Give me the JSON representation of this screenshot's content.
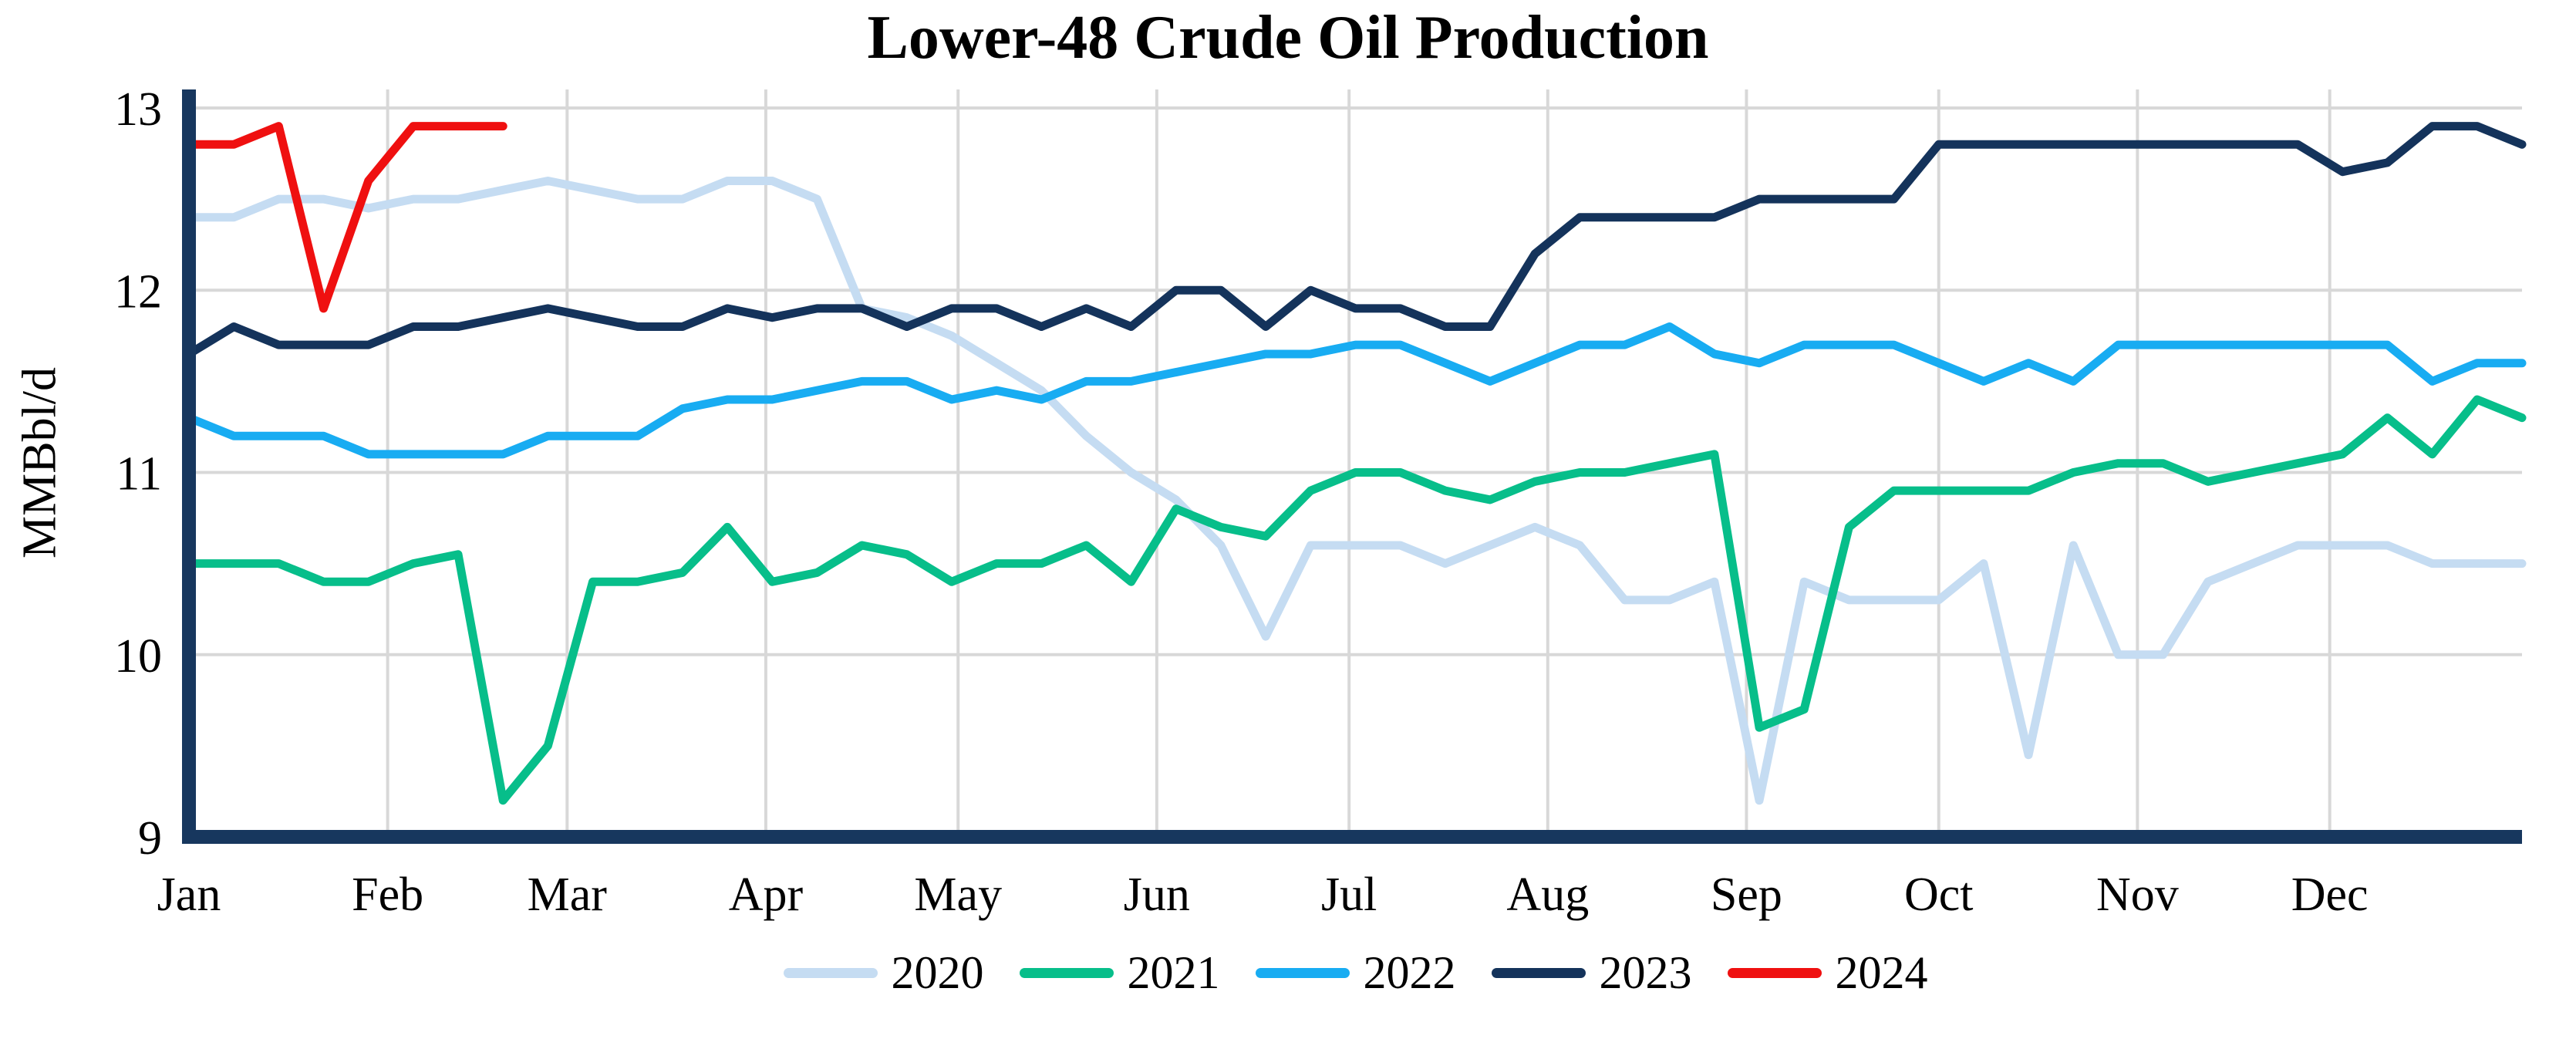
{
  "title": "Lower-48 Crude Oil Production",
  "y_axis": {
    "label": "MMBbl/d",
    "tick_labels": [
      "13",
      "12",
      "11",
      "10",
      "9"
    ],
    "min": 9,
    "max": 13
  },
  "x_axis": {
    "tick_labels": [
      "Jan",
      "Feb",
      "Mar",
      "Apr",
      "May",
      "Jun",
      "Jul",
      "Aug",
      "Sep",
      "Oct",
      "Nov",
      "Dec"
    ],
    "month_start_days": [
      0,
      31,
      59,
      90,
      120,
      151,
      181,
      212,
      243,
      273,
      304,
      334
    ],
    "days_span": 364
  },
  "colors": {
    "axis": "#17375E",
    "gridline": "#D8D8D8",
    "background": "#FFFFFF",
    "title_text": "#000000"
  },
  "chart_data": {
    "type": "line",
    "title": "Lower-48 Crude Oil Production",
    "xlabel": "",
    "ylabel": "MMBbl/d",
    "ylim": [
      9,
      13
    ],
    "grid": true,
    "legend_position": "bottom",
    "x_unit": "week (53 weekly points spanning Jan-Dec; 2024 partial year)",
    "x_tick_labels": [
      "Jan",
      "Feb",
      "Mar",
      "Apr",
      "May",
      "Jun",
      "Jul",
      "Aug",
      "Sep",
      "Oct",
      "Nov",
      "Dec"
    ],
    "series": [
      {
        "name": "2020",
        "color": "#C5DCF2",
        "values": [
          12.4,
          12.4,
          12.5,
          12.5,
          12.45,
          12.5,
          12.5,
          12.55,
          12.6,
          12.55,
          12.5,
          12.5,
          12.6,
          12.6,
          12.5,
          11.9,
          11.85,
          11.75,
          11.6,
          11.45,
          11.2,
          11.0,
          10.85,
          10.6,
          10.1,
          10.6,
          10.6,
          10.6,
          10.5,
          10.6,
          10.7,
          10.6,
          10.3,
          10.3,
          10.4,
          9.2,
          10.4,
          10.3,
          10.3,
          10.3,
          10.5,
          9.45,
          10.6,
          10.0,
          10.0,
          10.4,
          10.5,
          10.6,
          10.6,
          10.6,
          10.5,
          10.5,
          10.5
        ]
      },
      {
        "name": "2021",
        "color": "#07BE8A",
        "values": [
          10.5,
          10.5,
          10.5,
          10.4,
          10.4,
          10.5,
          10.55,
          9.2,
          9.5,
          10.4,
          10.4,
          10.45,
          10.7,
          10.4,
          10.45,
          10.6,
          10.55,
          10.4,
          10.5,
          10.5,
          10.6,
          10.4,
          10.8,
          10.7,
          10.65,
          10.9,
          11.0,
          11.0,
          10.9,
          10.85,
          10.95,
          11.0,
          11.0,
          11.05,
          11.1,
          9.6,
          9.7,
          10.7,
          10.9,
          10.9,
          10.9,
          10.9,
          11.0,
          11.05,
          11.05,
          10.95,
          11.0,
          11.05,
          11.1,
          11.3,
          11.1,
          11.4,
          11.3
        ]
      },
      {
        "name": "2022",
        "color": "#18ACF2",
        "values": [
          11.3,
          11.2,
          11.2,
          11.2,
          11.1,
          11.1,
          11.1,
          11.1,
          11.2,
          11.2,
          11.2,
          11.35,
          11.4,
          11.4,
          11.45,
          11.5,
          11.5,
          11.4,
          11.45,
          11.4,
          11.5,
          11.5,
          11.55,
          11.6,
          11.65,
          11.65,
          11.7,
          11.7,
          11.6,
          11.5,
          11.6,
          11.7,
          11.7,
          11.8,
          11.65,
          11.6,
          11.7,
          11.7,
          11.7,
          11.6,
          11.5,
          11.6,
          11.5,
          11.7,
          11.7,
          11.7,
          11.7,
          11.7,
          11.7,
          11.7,
          11.5,
          11.6,
          11.6
        ]
      },
      {
        "name": "2023",
        "color": "#14335B",
        "values": [
          11.65,
          11.8,
          11.7,
          11.7,
          11.7,
          11.8,
          11.8,
          11.85,
          11.9,
          11.85,
          11.8,
          11.8,
          11.9,
          11.85,
          11.9,
          11.9,
          11.8,
          11.9,
          11.9,
          11.8,
          11.9,
          11.8,
          12.0,
          12.0,
          11.8,
          12.0,
          11.9,
          11.9,
          11.8,
          11.8,
          12.2,
          12.4,
          12.4,
          12.4,
          12.4,
          12.5,
          12.5,
          12.5,
          12.5,
          12.8,
          12.8,
          12.8,
          12.8,
          12.8,
          12.8,
          12.8,
          12.8,
          12.8,
          12.65,
          12.7,
          12.9,
          12.9,
          12.8
        ]
      },
      {
        "name": "2024",
        "color": "#EF1010",
        "values": [
          12.8,
          12.8,
          12.9,
          11.9,
          12.6,
          12.9,
          12.9,
          12.9
        ]
      }
    ]
  }
}
